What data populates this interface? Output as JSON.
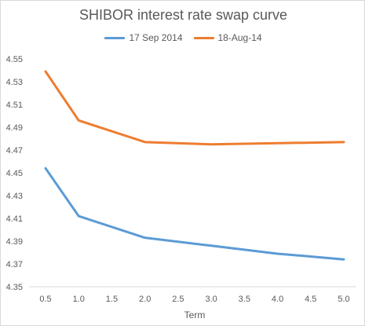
{
  "chart_data": {
    "type": "line",
    "title": "SHIBOR interest rate swap curve",
    "xlabel": "Term",
    "ylabel": "",
    "x": [
      0.5,
      1.0,
      2.0,
      3.0,
      4.0,
      5.0
    ],
    "x_ticks": [
      "0.5",
      "1.0",
      "1.5",
      "2.0",
      "2.5",
      "3.0",
      "3.5",
      "4.0",
      "4.5",
      "5.0"
    ],
    "y_ticks": [
      "4.35",
      "4.37",
      "4.39",
      "4.41",
      "4.43",
      "4.45",
      "4.47",
      "4.49",
      "4.51",
      "4.53",
      "4.55"
    ],
    "ylim": [
      4.35,
      4.55
    ],
    "xlim": [
      0.5,
      5.0
    ],
    "grid": false,
    "legend_position": "top",
    "series": [
      {
        "name": "17 Sep 2014",
        "color": "#5b9bd5",
        "values": [
          4.454,
          4.412,
          4.393,
          4.386,
          4.379,
          4.374
        ]
      },
      {
        "name": "18-Aug-14",
        "color": "#ed7d31",
        "values": [
          4.539,
          4.496,
          4.477,
          4.475,
          4.476,
          4.477
        ]
      }
    ]
  }
}
